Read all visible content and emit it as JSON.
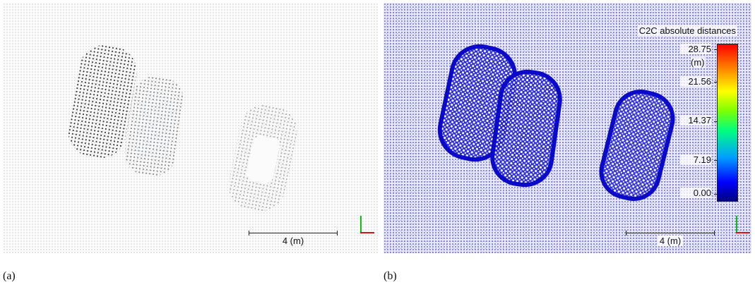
{
  "panel_a": {
    "caption": "(a)",
    "scale_label": "4  (m)"
  },
  "panel_b": {
    "caption": "(b)",
    "scale_label": "4  (m)",
    "legend": {
      "title": "C2C absolute distances",
      "unit": "(m)",
      "ticks": [
        "28.75",
        "21.56",
        "14.37",
        "7.19",
        "0.00"
      ],
      "colors": {
        "low": "#00007f",
        "mid": "#00ff80",
        "high": "#ff0000"
      }
    }
  },
  "axes_icon": {
    "x_color": "#e01010",
    "y_color": "#10c010"
  }
}
